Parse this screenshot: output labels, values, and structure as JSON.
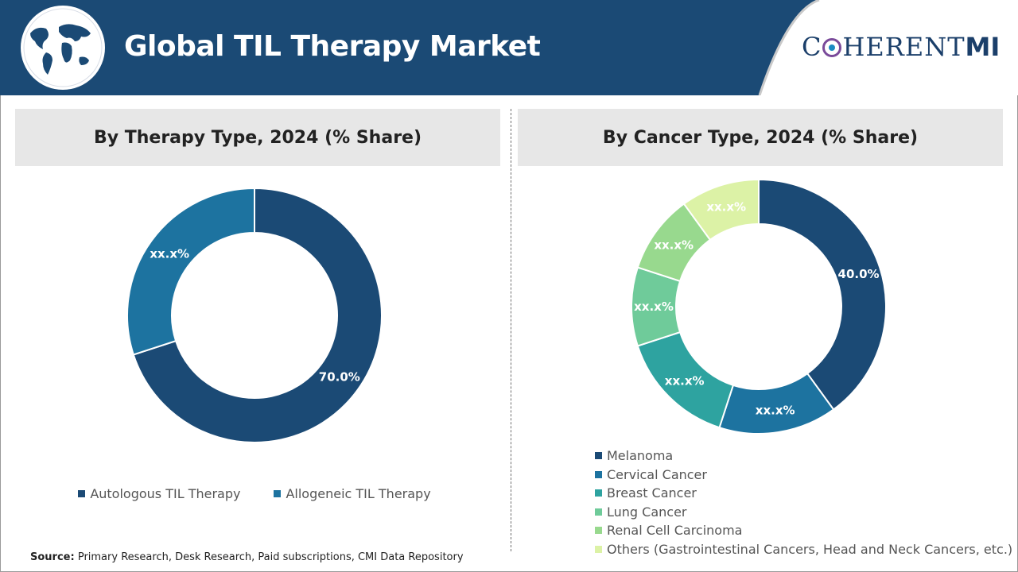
{
  "header": {
    "title": "Global TIL Therapy Market",
    "logo_prefix": "C",
    "logo_rest": "HERENT",
    "logo_mi": "MI",
    "colors": {
      "banner": "#1b4a75",
      "logo_text": "#1b3f6a"
    },
    "icon": "world-map-globe-icon"
  },
  "chart_data": [
    {
      "type": "pie",
      "title": "By Therapy Type, 2024 (% Share)",
      "categories": [
        "Autologous TIL Therapy",
        "Allogeneic TIL Therapy"
      ],
      "values": [
        70.0,
        30.0
      ],
      "labels": [
        "70.0%",
        "xx.x%"
      ],
      "colors": [
        "#1b4a75",
        "#1d73a0"
      ],
      "legend": "bottom"
    },
    {
      "type": "pie",
      "title": "By Cancer Type, 2024 (% Share)",
      "categories": [
        "Melanoma",
        "Cervical Cancer",
        "Breast Cancer",
        "Lung Cancer",
        "Renal Cell Carcinoma",
        "Others (Gastrointestinal Cancers, Head and Neck Cancers, etc.)"
      ],
      "values": [
        40.0,
        15.0,
        15.0,
        10.0,
        10.0,
        10.0
      ],
      "labels": [
        "40.0%",
        "xx.x%",
        "xx.x%",
        "xx.x%",
        "xx.x%",
        "xx.x%"
      ],
      "colors": [
        "#1b4a75",
        "#1d73a0",
        "#2ea3a0",
        "#6fcb9a",
        "#98d98e",
        "#dcf2a6"
      ],
      "legend": "bottom"
    }
  ],
  "footer": {
    "source_label": "Source:",
    "source_text": "Primary Research, Desk Research, Paid subscriptions, CMI Data Repository"
  }
}
